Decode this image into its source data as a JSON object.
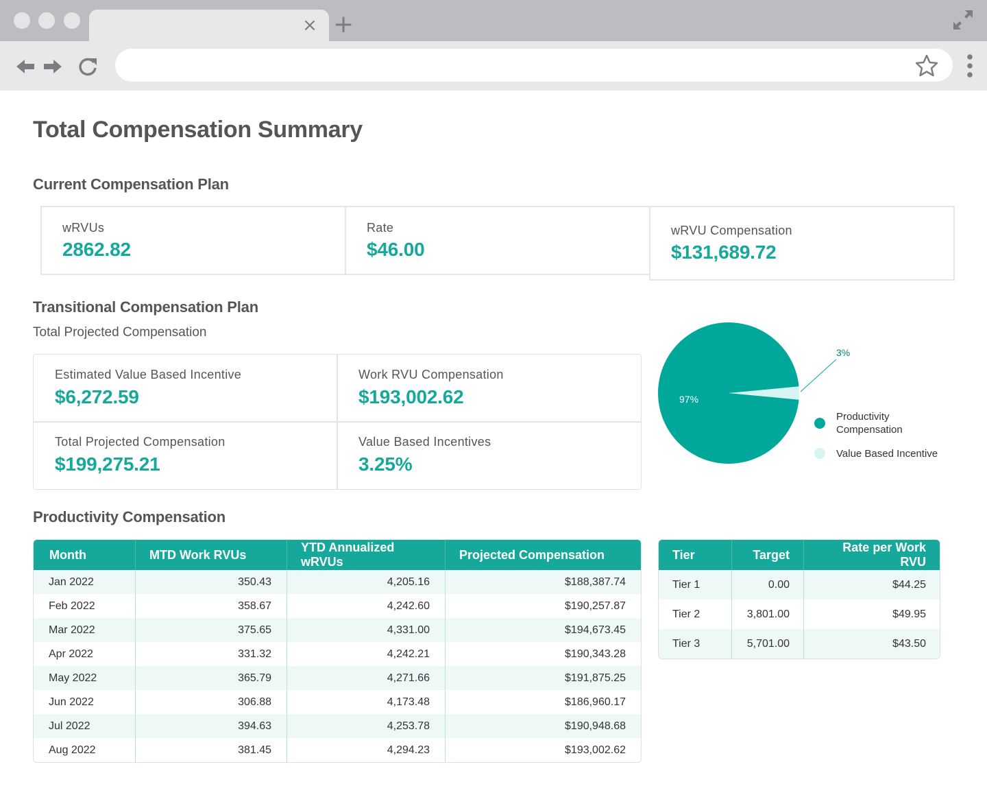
{
  "browser": {
    "tab_close_glyph": "×",
    "tab_new_glyph": "+",
    "url": ""
  },
  "page": {
    "title": "Total Compensation Summary"
  },
  "current_plan": {
    "title": "Current Compensation Plan",
    "cards": [
      {
        "label": "wRVUs",
        "value": "2862.82"
      },
      {
        "label": "Rate",
        "value": "$46.00"
      },
      {
        "label": "wRVU Compensation",
        "value": "$131,689.72"
      }
    ]
  },
  "transitional_plan": {
    "title": "Transitional Compensation Plan",
    "subtitle": "Total Projected Compensation",
    "cells": [
      {
        "label": "Estimated Value Based Incentive",
        "value": "$6,272.59"
      },
      {
        "label": "Work RVU Compensation",
        "value": "$193,002.62"
      },
      {
        "label": "Total Projected Compensation",
        "value": "$199,275.21"
      },
      {
        "label": "Value Based Incentives",
        "value": "3.25%"
      }
    ]
  },
  "chart_data": {
    "type": "pie",
    "slices": [
      {
        "name": "Productivity Compensation",
        "value": 97,
        "label": "97%",
        "color": "#00a89c"
      },
      {
        "name": "Value Based Incentive",
        "value": 3,
        "label": "3%",
        "color": "#d6f5f2"
      }
    ],
    "legend": [
      "Productivity Compensation",
      "Value Based Incentive"
    ],
    "legend_placement": "right"
  },
  "colors": {
    "accent": "#15a89b",
    "pie_main": "#00a89c",
    "pie_small": "#d6f5f2",
    "row_alt": "#edf8f7"
  },
  "productivity": {
    "title": "Productivity Compensation",
    "headers": [
      "Month",
      "MTD Work RVUs",
      "YTD Annualized wRVUs",
      "Projected Compensation"
    ],
    "rows": [
      [
        "Jan 2022",
        "350.43",
        "4,205.16",
        "$188,387.74"
      ],
      [
        "Feb 2022",
        "358.67",
        "4,242.60",
        "$190,257.87"
      ],
      [
        "Mar 2022",
        "375.65",
        "4,331.00",
        "$194,673.45"
      ],
      [
        "Apr 2022",
        "331.32",
        "4,242.21",
        "$190,343.28"
      ],
      [
        "May 2022",
        "365.79",
        "4,271.66",
        "$191,875.25"
      ],
      [
        "Jun 2022",
        "306.88",
        "4,173.48",
        "$186,960.17"
      ],
      [
        "Jul 2022",
        "394.63",
        "4,253.78",
        "$190,948.68"
      ],
      [
        "Aug 2022",
        "381.45",
        "4,294.23",
        "$193,002.62"
      ]
    ]
  },
  "tiers": {
    "headers": [
      "Tier",
      "Target",
      "Rate per Work RVU"
    ],
    "rows": [
      [
        "Tier 1",
        "0.00",
        "$44.25"
      ],
      [
        "Tier 2",
        "3,801.00",
        "$49.95"
      ],
      [
        "Tier 3",
        "5,701.00",
        "$43.50"
      ]
    ]
  }
}
